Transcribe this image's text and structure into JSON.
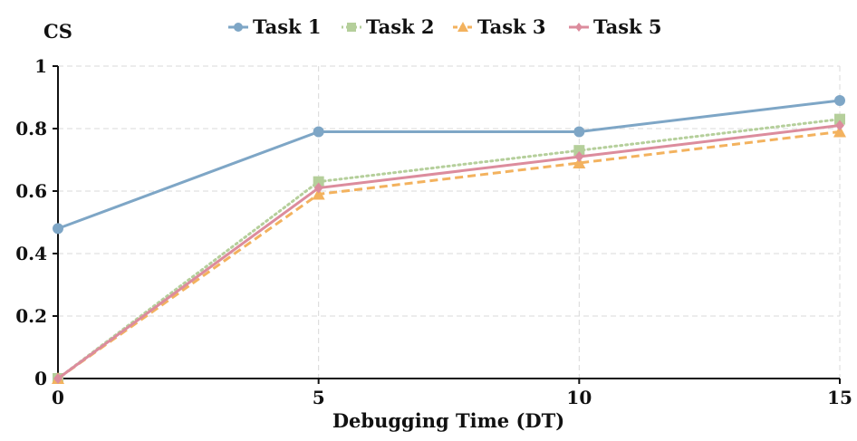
{
  "chart_data": {
    "type": "line",
    "xlabel": "Debugging Time (DT)",
    "ylabel": "CS",
    "x": [
      0,
      5,
      10,
      15
    ],
    "xlim": [
      0,
      15
    ],
    "ylim": [
      0,
      1
    ],
    "xticks": [
      "0",
      "5",
      "10",
      "15"
    ],
    "yticks": [
      "0",
      "0.2",
      "0.4",
      "0.6",
      "0.8",
      "1"
    ],
    "grid": true,
    "legend": "top",
    "series": [
      {
        "name": "Task 1",
        "values": [
          0.48,
          0.79,
          0.79,
          0.89
        ],
        "color": "#7ea6c6",
        "marker": "circle",
        "dash": "solid"
      },
      {
        "name": "Task 2",
        "values": [
          0,
          0.63,
          0.73,
          0.83
        ],
        "color": "#b5cf9b",
        "marker": "square",
        "dash": "dotted"
      },
      {
        "name": "Task 3",
        "values": [
          0,
          0.59,
          0.69,
          0.79
        ],
        "color": "#f3b25e",
        "marker": "triangle",
        "dash": "dashed"
      },
      {
        "name": "Task 5",
        "values": [
          0,
          0.61,
          0.71,
          0.81
        ],
        "color": "#dc8c9d",
        "marker": "diamond",
        "dash": "solid"
      }
    ]
  }
}
